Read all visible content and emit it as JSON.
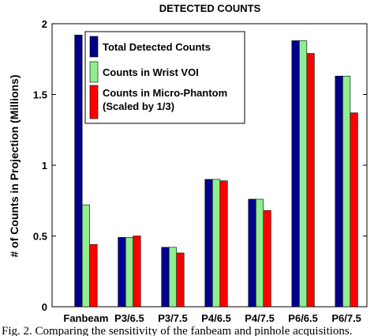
{
  "chart_data": {
    "type": "bar",
    "title": "DETECTED COUNTS",
    "xlabel": "",
    "ylabel": "# of Counts in Projection (Millions)",
    "ylim": [
      0,
      2
    ],
    "yticks": [
      "0",
      "0.5",
      "1",
      "1.5",
      "2"
    ],
    "categories": [
      "Fanbeam",
      "P3/6.5",
      "P3/7.5",
      "P4/6.5",
      "P4/7.5",
      "P6/6.5",
      "P6/7.5"
    ],
    "series": [
      {
        "name": "Total Detected Counts",
        "color": "#00008b",
        "values": [
          1.92,
          0.49,
          0.42,
          0.9,
          0.76,
          1.88,
          1.63
        ]
      },
      {
        "name": "Counts in Wrist VOI",
        "color": "#90ee90",
        "values": [
          0.72,
          0.49,
          0.42,
          0.9,
          0.76,
          1.88,
          1.63
        ]
      },
      {
        "name": "Counts in Micro-Phantom (Scaled by 1/3)",
        "color": "#ff0000",
        "values": [
          0.44,
          0.5,
          0.38,
          0.89,
          0.68,
          1.79,
          1.37
        ]
      }
    ],
    "legend": {
      "position": "top-left",
      "lines": [
        [
          "Total Detected Counts"
        ],
        [
          "Counts in Wrist VOI"
        ],
        [
          "Counts in Micro-Phantom",
          "(Scaled by 1/3)"
        ]
      ]
    },
    "grid": false
  },
  "caption": "Fig. 2. Comparing the sensitivity of the fanbeam and pinhole acquisitions."
}
